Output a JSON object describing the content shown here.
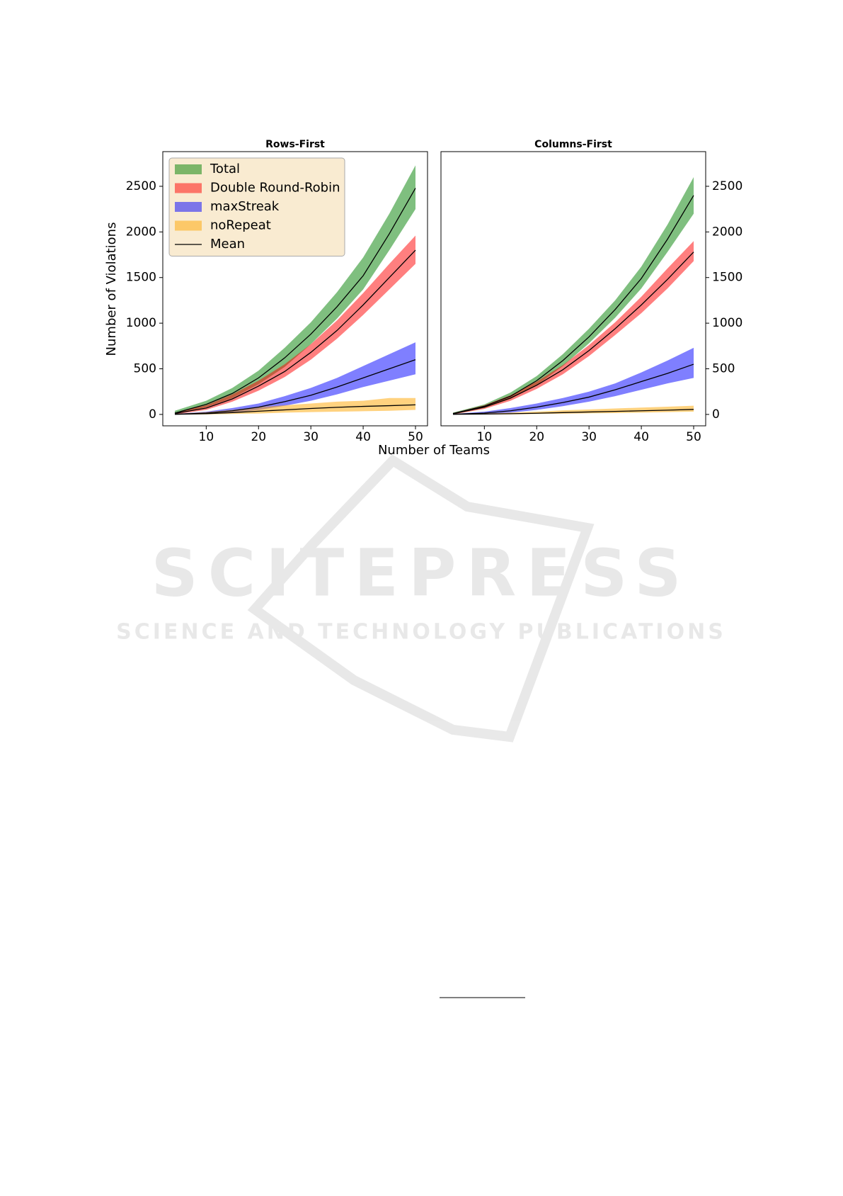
{
  "figure": {
    "xlabel": "Number of Teams",
    "ylabel": "Number of Violations"
  },
  "watermark": {
    "title": "SCITEPRESS",
    "subtitle": "SCIENCE AND TECHNOLOGY PUBLICATIONS"
  },
  "chart_data": [
    {
      "type": "band-line",
      "title": "Rows-First",
      "yaxis_side": "left",
      "legend": "upper left",
      "mean_label": "Mean",
      "mean_color": "#000000",
      "x": [
        4,
        10,
        15,
        20,
        25,
        30,
        35,
        40,
        45,
        50
      ],
      "xlim": [
        1.7,
        52.3
      ],
      "ylim": [
        -125,
        2880
      ],
      "xticks": [
        10,
        20,
        30,
        40,
        50
      ],
      "yticks": [
        0,
        500,
        1000,
        1500,
        2000,
        2500
      ],
      "series": [
        {
          "name": "Total",
          "color": "#008000",
          "values": [
            15,
            110,
            230,
            400,
            620,
            880,
            1180,
            1520,
            1980,
            2480
          ],
          "lower": [
            0,
            80,
            180,
            330,
            520,
            770,
            1050,
            1370,
            1800,
            2250
          ],
          "upper": [
            40,
            150,
            290,
            480,
            730,
            1010,
            1340,
            1720,
            2200,
            2730
          ]
        },
        {
          "name": "Double Round-Robin",
          "color": "#ff0000",
          "values": [
            10,
            70,
            170,
            310,
            470,
            680,
            920,
            1200,
            1500,
            1800
          ],
          "lower": [
            0,
            50,
            140,
            260,
            410,
            600,
            830,
            1090,
            1370,
            1650
          ],
          "upper": [
            20,
            100,
            220,
            370,
            550,
            770,
            1030,
            1330,
            1650,
            1960
          ]
        },
        {
          "name": "maxStreak",
          "color": "#0000ff",
          "values": [
            2,
            15,
            40,
            80,
            140,
            210,
            300,
            400,
            500,
            600
          ],
          "lower": [
            0,
            5,
            20,
            50,
            95,
            150,
            220,
            300,
            370,
            440
          ],
          "upper": [
            5,
            30,
            70,
            120,
            200,
            290,
            400,
            530,
            660,
            790
          ]
        },
        {
          "name": "noRepeat",
          "color": "#ffa500",
          "values": [
            1,
            8,
            20,
            35,
            50,
            65,
            78,
            88,
            96,
            105
          ],
          "lower": [
            0,
            0,
            5,
            10,
            20,
            25,
            30,
            35,
            40,
            50
          ],
          "upper": [
            5,
            25,
            50,
            80,
            100,
            120,
            140,
            150,
            180,
            180
          ]
        }
      ]
    },
    {
      "type": "band-line",
      "title": "Columns-First",
      "yaxis_side": "right",
      "mean_color": "#000000",
      "x": [
        4,
        10,
        15,
        20,
        25,
        30,
        35,
        40,
        45,
        50
      ],
      "xlim": [
        1.7,
        52.3
      ],
      "ylim": [
        -125,
        2880
      ],
      "xticks": [
        10,
        20,
        30,
        40,
        50
      ],
      "yticks": [
        0,
        500,
        1000,
        1500,
        2000,
        2500
      ],
      "series": [
        {
          "color": "#008000",
          "values": [
            10,
            90,
            200,
            370,
            590,
            850,
            1150,
            1490,
            1920,
            2400
          ],
          "lower": [
            0,
            70,
            170,
            320,
            530,
            780,
            1060,
            1380,
            1780,
            2200
          ],
          "upper": [
            20,
            110,
            240,
            420,
            660,
            940,
            1250,
            1620,
            2080,
            2600
          ]
        },
        {
          "color": "#ff0000",
          "values": [
            8,
            80,
            180,
            320,
            490,
            700,
            940,
            1200,
            1480,
            1780
          ],
          "lower": [
            0,
            60,
            150,
            280,
            440,
            640,
            870,
            1110,
            1380,
            1680
          ],
          "upper": [
            15,
            100,
            210,
            360,
            540,
            760,
            1010,
            1290,
            1600,
            1900
          ]
        },
        {
          "color": "#0000ff",
          "values": [
            2,
            15,
            40,
            80,
            130,
            190,
            270,
            360,
            450,
            550
          ],
          "lower": [
            0,
            5,
            20,
            50,
            90,
            140,
            200,
            270,
            340,
            400
          ],
          "upper": [
            5,
            30,
            70,
            120,
            180,
            250,
            340,
            460,
            590,
            730
          ]
        },
        {
          "color": "#ffa500",
          "values": [
            1,
            4,
            8,
            13,
            20,
            27,
            33,
            40,
            47,
            55
          ],
          "lower": [
            0,
            0,
            0,
            5,
            8,
            12,
            15,
            20,
            25,
            30
          ],
          "upper": [
            3,
            12,
            20,
            30,
            45,
            55,
            65,
            75,
            85,
            95
          ]
        }
      ]
    }
  ]
}
